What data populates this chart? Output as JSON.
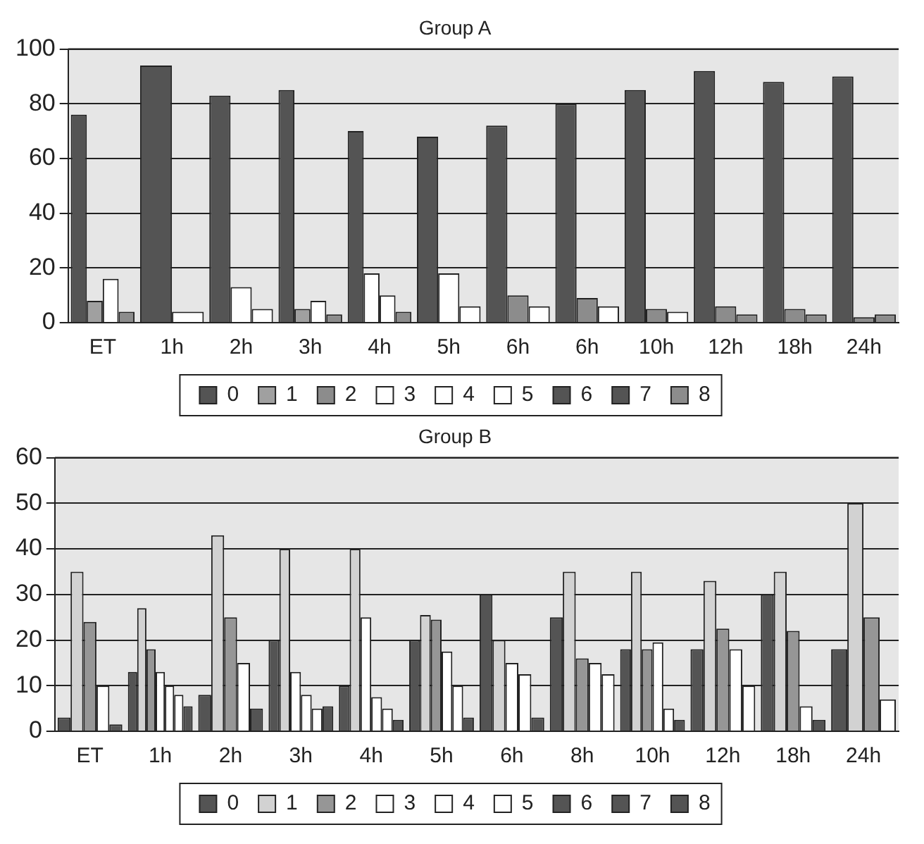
{
  "chart_data": [
    {
      "type": "bar",
      "title": "Group A",
      "categories": [
        "ET",
        "1h",
        "2h",
        "3h",
        "4h",
        "5h",
        "6h",
        "6h",
        "10h",
        "12h",
        "18h",
        "24h"
      ],
      "ylim": [
        0,
        100
      ],
      "yticks": [
        0,
        20,
        40,
        60,
        80,
        100
      ],
      "grid": "y",
      "legend": "bottom",
      "series": [
        {
          "name": "0",
          "color": "#545454",
          "values": [
            76,
            94,
            83,
            85,
            70,
            68,
            72,
            80,
            85,
            92,
            88,
            90
          ]
        },
        {
          "name": "1",
          "color": "#a0a0a0",
          "values": [
            8,
            null,
            null,
            5,
            null,
            null,
            null,
            null,
            null,
            null,
            null,
            null
          ]
        },
        {
          "name": "2",
          "color": "#8c8c8c",
          "values": [
            null,
            null,
            null,
            null,
            null,
            null,
            10,
            9,
            5,
            6,
            5,
            2
          ]
        },
        {
          "name": "3",
          "color": "#ffffff",
          "values": [
            16,
            null,
            13,
            8,
            18,
            18,
            null,
            null,
            null,
            null,
            null,
            null
          ]
        },
        {
          "name": "4",
          "color": "#ffffff",
          "values": [
            null,
            null,
            null,
            null,
            10,
            null,
            null,
            null,
            null,
            null,
            null,
            null
          ]
        },
        {
          "name": "5",
          "color": "#ffffff",
          "values": [
            null,
            4,
            5,
            null,
            null,
            6,
            6,
            6,
            4,
            null,
            null,
            null
          ]
        },
        {
          "name": "6",
          "color": "#545454",
          "values": [
            null,
            null,
            null,
            null,
            null,
            null,
            null,
            null,
            null,
            null,
            null,
            null
          ]
        },
        {
          "name": "7",
          "color": "#545454",
          "values": [
            null,
            null,
            null,
            null,
            null,
            null,
            null,
            null,
            null,
            null,
            null,
            null
          ]
        },
        {
          "name": "8",
          "color": "#8c8c8c",
          "values": [
            4,
            null,
            null,
            3,
            4,
            null,
            null,
            null,
            null,
            3,
            3,
            3
          ]
        }
      ]
    },
    {
      "type": "bar",
      "title": "Group B",
      "categories": [
        "ET",
        "1h",
        "2h",
        "3h",
        "4h",
        "5h",
        "6h",
        "8h",
        "10h",
        "12h",
        "18h",
        "24h"
      ],
      "ylim": [
        0,
        60
      ],
      "yticks": [
        0,
        10,
        20,
        30,
        40,
        50,
        60
      ],
      "grid": "y",
      "legend": "bottom",
      "series": [
        {
          "name": "0",
          "color": "#545454",
          "values": [
            3,
            13,
            8,
            20,
            10,
            20,
            30,
            25,
            18,
            18,
            30,
            18
          ]
        },
        {
          "name": "1",
          "color": "#d2d2d2",
          "values": [
            35,
            27,
            43,
            40,
            40,
            25.5,
            20,
            35,
            35,
            33,
            35,
            50
          ]
        },
        {
          "name": "2",
          "color": "#969696",
          "values": [
            24,
            18,
            25,
            null,
            null,
            24.5,
            null,
            16,
            18,
            22.5,
            22,
            25
          ]
        },
        {
          "name": "3",
          "color": "#ffffff",
          "values": [
            10,
            13,
            15,
            13,
            25,
            17.5,
            15,
            15,
            19.5,
            18,
            5.5,
            7
          ]
        },
        {
          "name": "4",
          "color": "#ffffff",
          "values": [
            null,
            10,
            null,
            8,
            7.5,
            10,
            12.5,
            12.5,
            null,
            10,
            null,
            null
          ]
        },
        {
          "name": "5",
          "color": "#ffffff",
          "values": [
            null,
            8,
            null,
            5,
            5,
            null,
            null,
            null,
            5,
            null,
            null,
            null
          ]
        },
        {
          "name": "6",
          "color": "#545454",
          "values": [
            1.5,
            5.5,
            null,
            5.5,
            2.5,
            3,
            3,
            null,
            2.5,
            null,
            2.5,
            null
          ]
        },
        {
          "name": "7",
          "color": "#545454",
          "values": [
            null,
            null,
            5,
            null,
            null,
            null,
            null,
            null,
            null,
            null,
            null,
            null
          ]
        },
        {
          "name": "8",
          "color": "#545454",
          "values": [
            null,
            null,
            null,
            null,
            null,
            null,
            null,
            null,
            null,
            null,
            null,
            null
          ]
        }
      ]
    }
  ]
}
